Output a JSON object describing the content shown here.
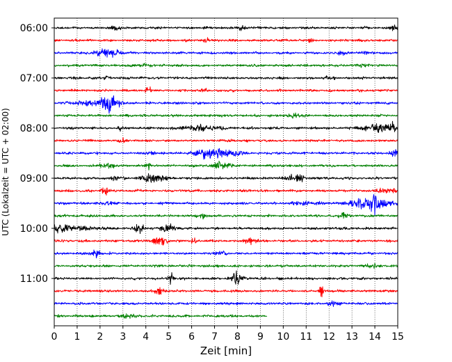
{
  "chart_data": {
    "type": "line",
    "title": "",
    "xlabel": "Zeit  [min]",
    "ylabel": "UTC (Lokalzeit = UTC + 02:00)",
    "xlim": [
      0,
      15
    ],
    "x_ticks": [
      "0",
      "1",
      "2",
      "3",
      "4",
      "5",
      "6",
      "7",
      "8",
      "9",
      "10",
      "11",
      "12",
      "13",
      "14",
      "15"
    ],
    "y_ticks": [
      {
        "label": "06:00",
        "trace": 0
      },
      {
        "label": "07:00",
        "trace": 4
      },
      {
        "label": "08:00",
        "trace": 8
      },
      {
        "label": "09:00",
        "trace": 12
      },
      {
        "label": "10:00",
        "trace": 16
      },
      {
        "label": "11:00",
        "trace": 20
      }
    ],
    "grid": "vertical-dotted",
    "color_cycle": [
      "#000000",
      "#ff0000",
      "#0000ff",
      "#008000"
    ],
    "traces": [
      {
        "start": "06:00",
        "end_min": 15,
        "events": [
          [
            2.7,
            0.2,
            0.4
          ],
          [
            8.2,
            0.25,
            0.3
          ],
          [
            14.9,
            0.3,
            0.4
          ]
        ]
      },
      {
        "start": "06:15",
        "end_min": 15,
        "events": [
          [
            6.7,
            0.2,
            0.3
          ],
          [
            11.2,
            0.2,
            0.3
          ]
        ]
      },
      {
        "start": "06:30",
        "end_min": 15,
        "events": [
          [
            2.3,
            0.5,
            0.8
          ],
          [
            12.6,
            0.2,
            0.4
          ],
          [
            13.7,
            0.2,
            0.4
          ]
        ]
      },
      {
        "start": "06:45",
        "end_min": 15,
        "events": [
          [
            3.8,
            0.3,
            0.3
          ],
          [
            13.5,
            0.2,
            0.3
          ]
        ]
      },
      {
        "start": "07:00",
        "end_min": 15,
        "events": [
          [
            2.2,
            0.2,
            0.3
          ],
          [
            12.0,
            0.2,
            0.3
          ]
        ]
      },
      {
        "start": "07:15",
        "end_min": 15,
        "events": [
          [
            4.1,
            0.1,
            0.9
          ],
          [
            6.6,
            0.1,
            0.5
          ]
        ]
      },
      {
        "start": "07:30",
        "end_min": 15,
        "events": [
          [
            2.4,
            0.4,
            1.6
          ],
          [
            1.5,
            0.8,
            0.4
          ]
        ]
      },
      {
        "start": "07:45",
        "end_min": 15,
        "events": [
          [
            10.5,
            0.3,
            0.3
          ]
        ]
      },
      {
        "start": "08:00",
        "end_min": 15,
        "events": [
          [
            6.3,
            0.8,
            0.6
          ],
          [
            14.2,
            0.8,
            0.7
          ],
          [
            14.8,
            0.1,
            1.0
          ],
          [
            2.9,
            0.1,
            0.5
          ]
        ]
      },
      {
        "start": "08:15",
        "end_min": 15,
        "events": [
          [
            3.0,
            0.2,
            0.3
          ]
        ]
      },
      {
        "start": "08:30",
        "end_min": 15,
        "events": [
          [
            6.8,
            0.6,
            1.2
          ],
          [
            7.8,
            0.4,
            0.6
          ],
          [
            14.9,
            0.2,
            0.7
          ],
          [
            4.3,
            0.1,
            0.4
          ]
        ]
      },
      {
        "start": "08:45",
        "end_min": 15,
        "events": [
          [
            2.3,
            0.3,
            0.5
          ],
          [
            4.1,
            0.1,
            1.1
          ],
          [
            7.3,
            0.4,
            0.6
          ]
        ]
      },
      {
        "start": "09:00",
        "end_min": 15,
        "events": [
          [
            4.3,
            0.5,
            0.7
          ],
          [
            10.5,
            0.4,
            0.6
          ],
          [
            2.7,
            0.3,
            0.3
          ]
        ]
      },
      {
        "start": "09:15",
        "end_min": 15,
        "events": [
          [
            2.2,
            0.15,
            0.8
          ],
          [
            14.5,
            0.4,
            0.5
          ]
        ]
      },
      {
        "start": "09:30",
        "end_min": 15,
        "events": [
          [
            13.8,
            0.7,
            1.4
          ],
          [
            14.0,
            0.1,
            1.8
          ],
          [
            2.3,
            0.2,
            0.3
          ],
          [
            11.0,
            0.5,
            0.3
          ]
        ]
      },
      {
        "start": "09:45",
        "end_min": 15,
        "events": [
          [
            6.4,
            0.2,
            0.5
          ],
          [
            12.6,
            0.15,
            0.7
          ]
        ]
      },
      {
        "start": "10:00",
        "end_min": 15,
        "events": [
          [
            5.0,
            0.3,
            0.8
          ],
          [
            3.7,
            0.2,
            0.9
          ],
          [
            0.3,
            0.4,
            0.6
          ],
          [
            1.0,
            0.8,
            0.4
          ]
        ]
      },
      {
        "start": "10:15",
        "end_min": 15,
        "events": [
          [
            4.6,
            0.3,
            0.8
          ],
          [
            8.5,
            0.3,
            0.5
          ],
          [
            6.1,
            0.1,
            0.5
          ]
        ]
      },
      {
        "start": "10:30",
        "end_min": 15,
        "events": [
          [
            1.8,
            0.2,
            0.8
          ],
          [
            7.3,
            0.2,
            0.5
          ]
        ]
      },
      {
        "start": "10:45",
        "end_min": 15,
        "events": [
          [
            13.9,
            0.2,
            0.4
          ]
        ]
      },
      {
        "start": "11:00",
        "end_min": 15,
        "events": [
          [
            5.1,
            0.1,
            1.4
          ],
          [
            8.0,
            0.2,
            1.6
          ]
        ]
      },
      {
        "start": "11:15",
        "end_min": 15,
        "events": [
          [
            4.6,
            0.2,
            0.7
          ],
          [
            11.7,
            0.1,
            1.4
          ]
        ]
      },
      {
        "start": "11:30",
        "end_min": 15,
        "events": [
          [
            12.3,
            0.3,
            0.4
          ]
        ]
      },
      {
        "start": "11:45",
        "end_min": 9.3,
        "events": [
          [
            3.2,
            0.3,
            0.3
          ]
        ]
      }
    ]
  }
}
